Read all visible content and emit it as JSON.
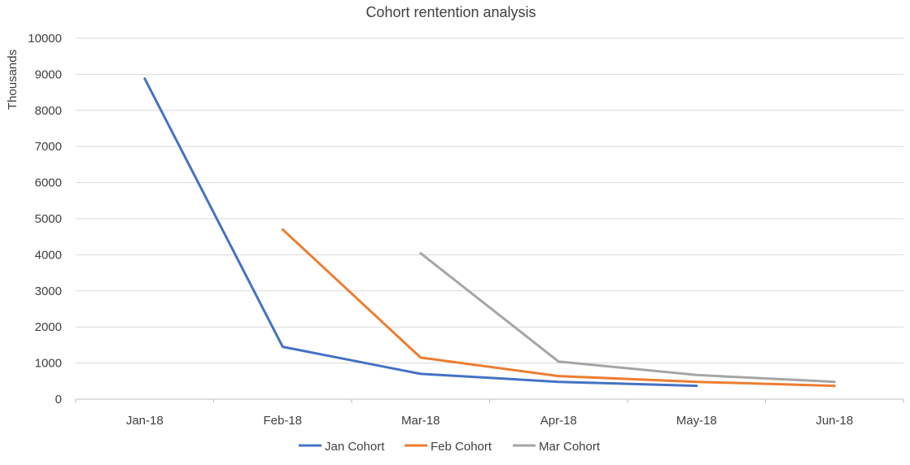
{
  "chart_data": {
    "type": "line",
    "title": "Cohort rentention analysis",
    "ylabel": "Thousands",
    "xlabel": "",
    "categories": [
      "Jan-18",
      "Feb-18",
      "Mar-18",
      "Apr-18",
      "May-18",
      "Jun-18"
    ],
    "y_ticks": [
      "0",
      "1000",
      "2000",
      "3000",
      "4000",
      "5000",
      "6000",
      "7000",
      "8000",
      "9000",
      "10000"
    ],
    "ylim": [
      0,
      10000
    ],
    "grid": true,
    "legend_position": "bottom",
    "series": [
      {
        "name": "Jan Cohort",
        "color": "#4472c4",
        "values": [
          8880,
          1450,
          700,
          480,
          370,
          null
        ]
      },
      {
        "name": "Feb Cohort",
        "color": "#ed7d31",
        "values": [
          null,
          4700,
          1150,
          640,
          480,
          370
        ]
      },
      {
        "name": "Mar Cohort",
        "color": "#a5a5a5",
        "values": [
          null,
          null,
          4040,
          1040,
          670,
          480
        ]
      }
    ]
  }
}
